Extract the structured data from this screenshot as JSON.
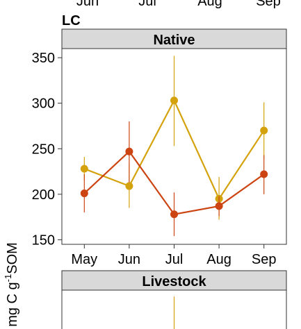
{
  "top_partial_ticks": [
    "Jun",
    "Jul",
    "Aug",
    "Sep"
  ],
  "panel_label": "LC",
  "ylabel": "mg C g^-1 SOM",
  "colors": {
    "Native": "#cc4411",
    "Livestock": "#d4a20c"
  },
  "chart_data": [
    {
      "type": "line",
      "facet": "Native",
      "categories": [
        "May",
        "Jun",
        "Jul",
        "Aug",
        "Sep"
      ],
      "ylim": [
        145,
        375
      ],
      "yticks": [
        150,
        200,
        250,
        300,
        350
      ],
      "grid": false,
      "series": [
        {
          "color": "#d4a20c",
          "values": [
            228,
            209,
            303,
            195,
            270
          ],
          "err_low": [
            215,
            185,
            253,
            172,
            238
          ],
          "err_high": [
            241,
            233,
            352,
            219,
            301
          ]
        },
        {
          "color": "#cc4411",
          "values": [
            201,
            247,
            178,
            187,
            222
          ],
          "err_low": [
            180,
            213,
            154,
            176,
            200
          ],
          "err_high": [
            222,
            280,
            202,
            198,
            243
          ]
        }
      ]
    },
    {
      "type": "line",
      "facet": "Livestock",
      "categories": [
        "May",
        "Jun",
        "Jul",
        "Aug",
        "Sep"
      ],
      "ylim": [
        145,
        375
      ],
      "grid": false,
      "series": [
        {
          "color": "#d4a20c",
          "values": [
            null,
            null,
            null,
            null,
            null
          ],
          "err_high": [
            null,
            null,
            353,
            null,
            null
          ]
        }
      ]
    }
  ]
}
